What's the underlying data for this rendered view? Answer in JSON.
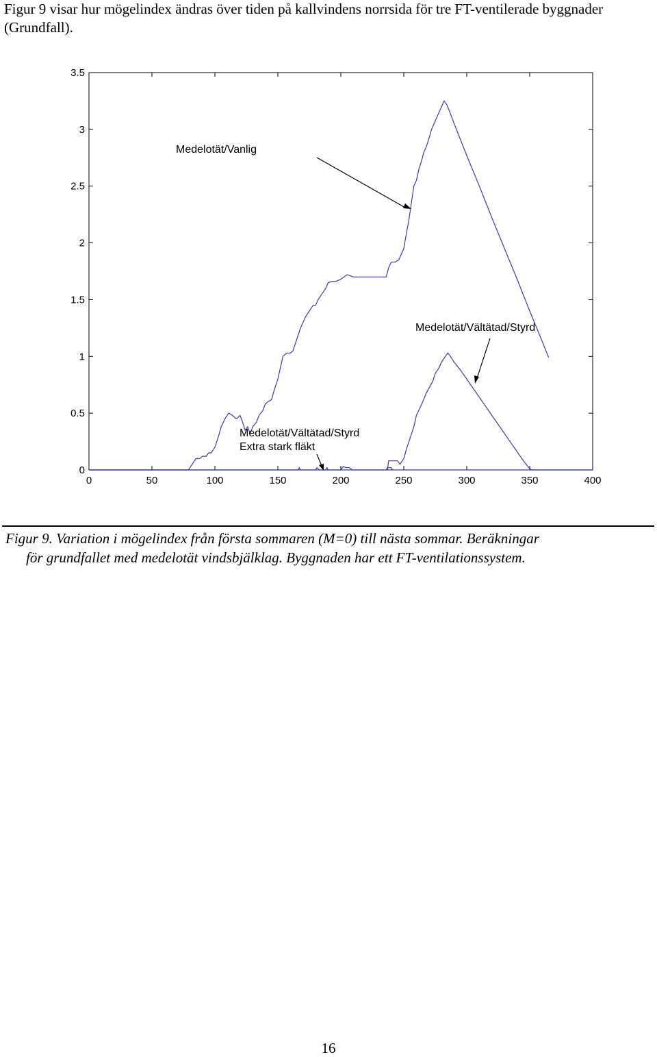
{
  "intro_text": "Figur 9 visar hur mögelindex ändras över tiden på kallvindens norrsida för tre FT-ventilerade byggnader (Grundfall).",
  "caption": {
    "line1": "Figur 9. Variation i mögelindex från första sommaren (M=0) till nästa sommar. Beräkningar",
    "line2": "för grundfallet med medelotät vindsbjälklag. Byggnaden har ett FT-ventilationssystem."
  },
  "page_number": "16",
  "chart_data": {
    "type": "line",
    "title": "",
    "xlabel": "",
    "ylabel": "",
    "xlim": [
      0,
      400
    ],
    "ylim": [
      0,
      3.5
    ],
    "xticks": [
      0,
      50,
      100,
      150,
      200,
      250,
      300,
      350,
      400
    ],
    "yticks": [
      0,
      0.5,
      1,
      1.5,
      2,
      2.5,
      3,
      3.5
    ],
    "xtick_labels": [
      "0",
      "50",
      "100",
      "150",
      "200",
      "250",
      "300",
      "350",
      "400"
    ],
    "ytick_labels": [
      "0",
      "0.5",
      "1",
      "1.5",
      "2",
      "2.5",
      "3",
      "3.5"
    ],
    "grid": false,
    "line_color": "#3a3aa0",
    "series": [
      {
        "name": "Medelotät/Vanlig",
        "x": [
          0,
          79,
          82,
          85,
          88,
          90,
          93,
          95,
          97,
          100,
          103,
          105,
          108,
          111,
          114,
          117,
          120,
          122,
          124,
          126,
          128,
          130,
          133,
          135,
          138,
          140,
          142,
          145,
          147,
          150,
          152,
          154,
          157,
          160,
          162,
          165,
          168,
          170,
          172,
          175,
          178,
          180,
          182,
          185,
          188,
          190,
          193,
          196,
          200,
          205,
          210,
          220,
          230,
          236,
          238,
          240,
          243,
          246,
          248,
          250,
          252,
          254,
          256,
          258,
          260,
          262,
          264,
          266,
          268,
          270,
          272,
          274,
          276,
          278,
          280,
          282,
          284,
          286,
          290,
          300,
          310,
          320,
          330,
          340,
          350,
          360,
          365
        ],
        "y": [
          0,
          0,
          0.05,
          0.1,
          0.1,
          0.12,
          0.12,
          0.15,
          0.15,
          0.2,
          0.3,
          0.38,
          0.45,
          0.5,
          0.48,
          0.45,
          0.48,
          0.42,
          0.35,
          0.38,
          0.32,
          0.38,
          0.42,
          0.48,
          0.52,
          0.58,
          0.6,
          0.62,
          0.7,
          0.8,
          0.9,
          1.0,
          1.03,
          1.03,
          1.05,
          1.15,
          1.25,
          1.3,
          1.35,
          1.4,
          1.45,
          1.45,
          1.5,
          1.55,
          1.6,
          1.65,
          1.66,
          1.66,
          1.68,
          1.72,
          1.7,
          1.7,
          1.7,
          1.7,
          1.78,
          1.83,
          1.83,
          1.85,
          1.9,
          1.95,
          2.08,
          2.2,
          2.35,
          2.5,
          2.55,
          2.65,
          2.72,
          2.8,
          2.85,
          2.92,
          3.0,
          3.05,
          3.1,
          3.15,
          3.2,
          3.25,
          3.22,
          3.17,
          3.05,
          2.77,
          2.5,
          2.22,
          1.95,
          1.68,
          1.4,
          1.13,
          0.99
        ]
      },
      {
        "name": "Medelotät/Vältätad/Styrd",
        "x": [
          0,
          237,
          238,
          240,
          243,
          245,
          247,
          250,
          252,
          255,
          258,
          260,
          263,
          265,
          268,
          270,
          273,
          275,
          278,
          280,
          283,
          285,
          287,
          290,
          295,
          300,
          305,
          310,
          315,
          320,
          325,
          330,
          335,
          340,
          345,
          350,
          352,
          400
        ],
        "y": [
          0,
          0,
          0.08,
          0.08,
          0.08,
          0.08,
          0.05,
          0.1,
          0.18,
          0.28,
          0.38,
          0.48,
          0.55,
          0.6,
          0.68,
          0.72,
          0.78,
          0.85,
          0.9,
          0.95,
          1.0,
          1.03,
          1.0,
          0.95,
          0.88,
          0.8,
          0.72,
          0.64,
          0.56,
          0.48,
          0.4,
          0.32,
          0.24,
          0.16,
          0.08,
          0.01,
          0,
          0
        ]
      },
      {
        "name": "Medelotät/Vältätad/Styrd Extra stark fläkt",
        "x": [
          0,
          166,
          167,
          168,
          180,
          181,
          182,
          183,
          188,
          189,
          190,
          200,
          202,
          204,
          207,
          209,
          236,
          237,
          240,
          241,
          400
        ],
        "y": [
          0,
          0,
          0.02,
          0,
          0,
          0.02,
          0.01,
          0,
          0,
          0.02,
          0,
          0,
          0.03,
          0.02,
          0.02,
          0,
          0,
          0.02,
          0.02,
          0,
          0
        ]
      }
    ],
    "annotations": [
      {
        "text": "Medelotät/Vanlig",
        "arrow_target": [
          255,
          2.3
        ]
      },
      {
        "text": "Medelotät/Vältätad/Styrd",
        "arrow_target": [
          305,
          0.78
        ]
      },
      {
        "text": [
          "Medelotät/Vältätad/Styrd",
          "Extra stark fläkt"
        ],
        "arrow_target": [
          183,
          0.02
        ]
      }
    ]
  }
}
